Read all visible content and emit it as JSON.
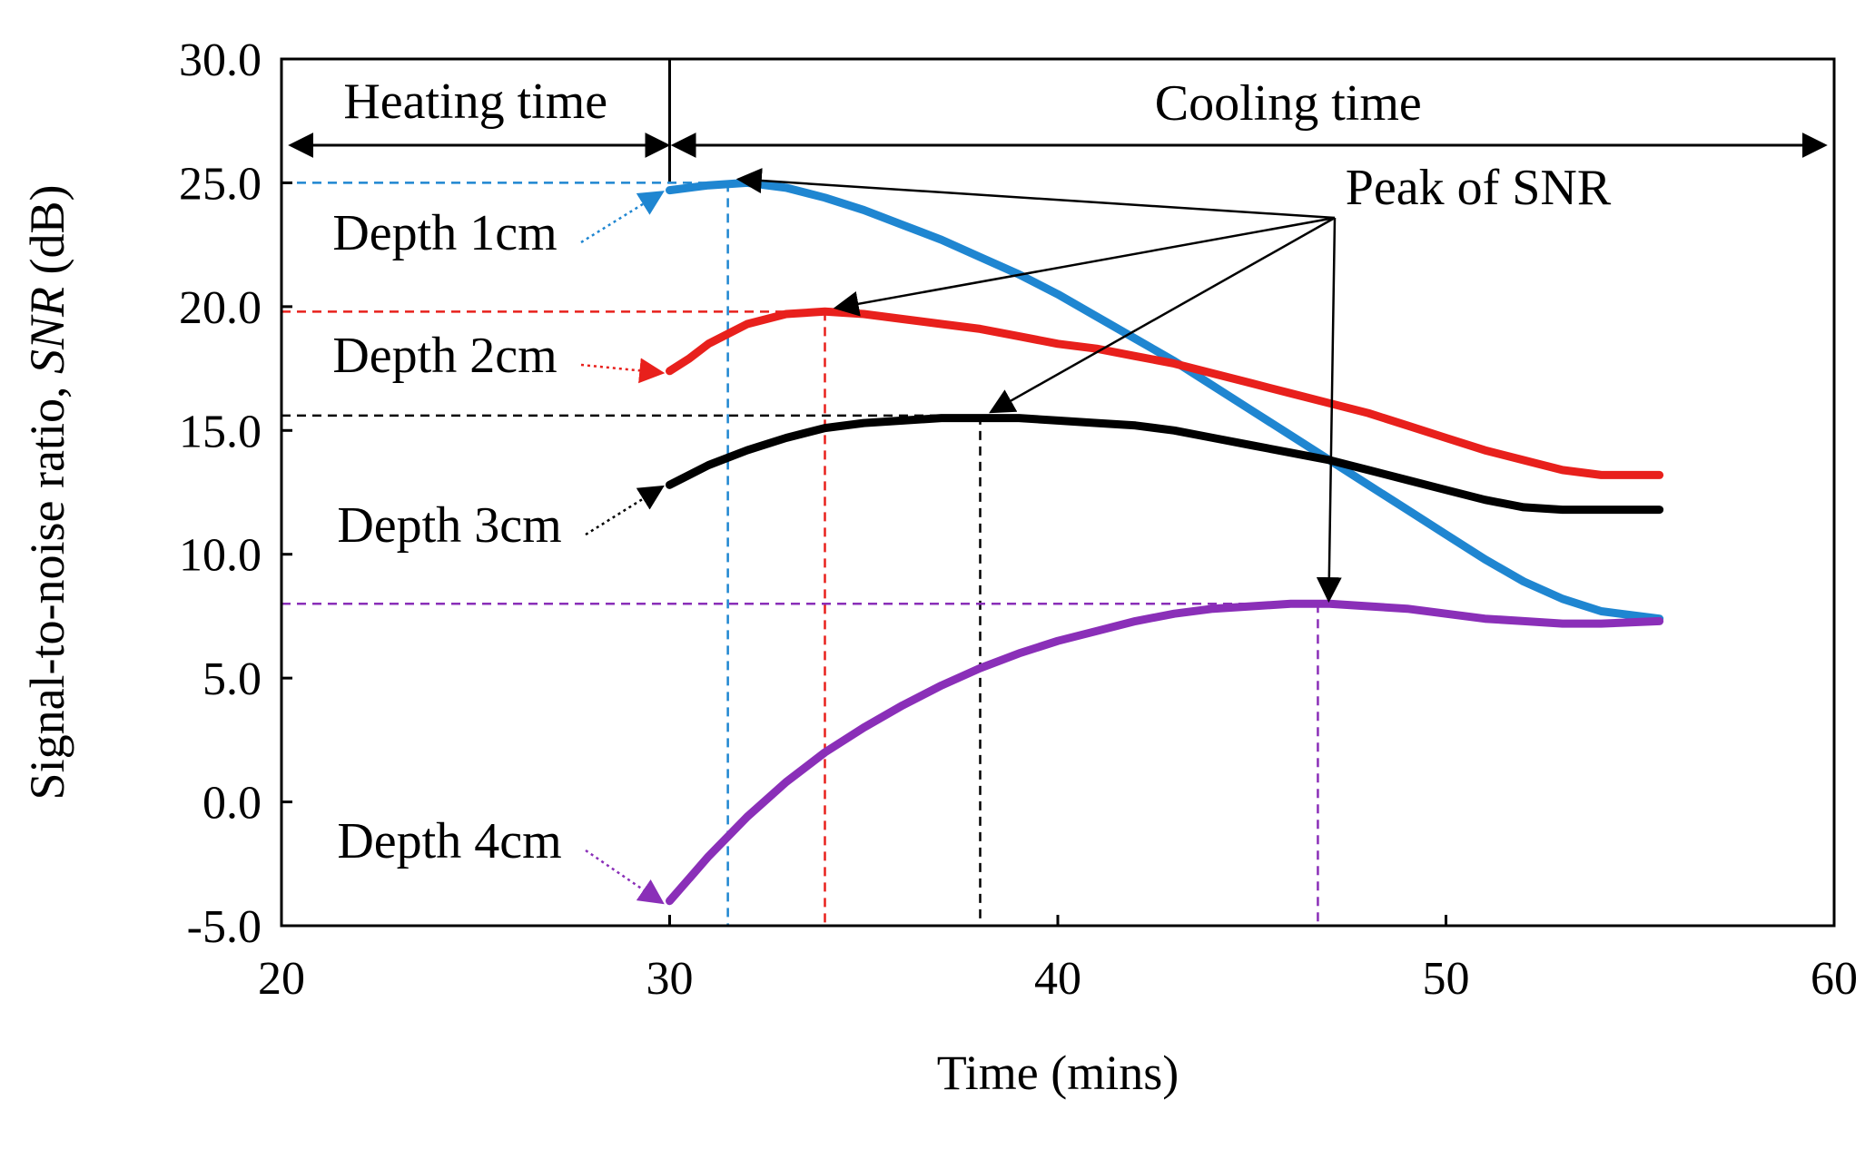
{
  "chart_data": {
    "type": "line",
    "xlabel": "Time  (mins)",
    "ylabel_prefix": "Signal-to-noise  ratio, ",
    "ylabel_italic": "SNR",
    "ylabel_suffix": " (dB)",
    "xlim": [
      20,
      60
    ],
    "ylim": [
      -5,
      30
    ],
    "xticks": [
      20,
      30,
      40,
      50,
      60
    ],
    "yticks": [
      -5,
      0,
      5,
      10,
      15,
      20,
      25,
      30
    ],
    "xtick_labels": [
      "20",
      "30",
      "40",
      "50",
      "60"
    ],
    "ytick_labels": [
      "-5.0",
      "0.0",
      "5.0",
      "10.0",
      "15.0",
      "20.0",
      "25.0",
      "30.0"
    ],
    "grid": false,
    "heating_label": "Heating  time",
    "cooling_label": "Cooling  time",
    "heating_range": [
      20,
      30
    ],
    "cooling_range": [
      30,
      60
    ],
    "peak_label": "Peak of SNR",
    "series": [
      {
        "name": "Depth 1cm",
        "color": "#1f86d1",
        "x": [
          30,
          31,
          32,
          33,
          34,
          35,
          36,
          37,
          38,
          39,
          40,
          41,
          42,
          43,
          44,
          45,
          46,
          47,
          48,
          49,
          50,
          51,
          52,
          53,
          54,
          55.5
        ],
        "y": [
          24.7,
          24.9,
          25.0,
          24.8,
          24.4,
          23.9,
          23.3,
          22.7,
          22.0,
          21.3,
          20.5,
          19.6,
          18.7,
          17.8,
          16.8,
          15.8,
          14.8,
          13.8,
          12.8,
          11.8,
          10.8,
          9.8,
          8.9,
          8.2,
          7.7,
          7.4
        ],
        "peak_x": 31.5,
        "peak_y": 25.0
      },
      {
        "name": "Depth 2cm",
        "color": "#e8201c",
        "x": [
          30,
          30.5,
          31,
          32,
          33,
          34,
          35,
          36,
          37,
          38,
          39,
          40,
          41,
          42,
          43,
          44,
          45,
          46,
          47,
          48,
          49,
          50,
          51,
          52,
          53,
          54,
          55.5
        ],
        "y": [
          17.4,
          17.9,
          18.5,
          19.3,
          19.7,
          19.8,
          19.7,
          19.5,
          19.3,
          19.1,
          18.8,
          18.5,
          18.3,
          18.0,
          17.7,
          17.3,
          16.9,
          16.5,
          16.1,
          15.7,
          15.2,
          14.7,
          14.2,
          13.8,
          13.4,
          13.2,
          13.2
        ],
        "peak_x": 34,
        "peak_y": 19.8
      },
      {
        "name": "Depth 3cm",
        "color": "#000000",
        "x": [
          30,
          31,
          32,
          33,
          34,
          35,
          36,
          37,
          38,
          39,
          40,
          41,
          42,
          43,
          44,
          45,
          46,
          47,
          48,
          49,
          50,
          51,
          52,
          53,
          54,
          55.5
        ],
        "y": [
          12.8,
          13.6,
          14.2,
          14.7,
          15.1,
          15.3,
          15.4,
          15.5,
          15.5,
          15.5,
          15.4,
          15.3,
          15.2,
          15.0,
          14.7,
          14.4,
          14.1,
          13.8,
          13.4,
          13.0,
          12.6,
          12.2,
          11.9,
          11.8,
          11.8,
          11.8
        ],
        "peak_x": 38,
        "peak_y": 15.6
      },
      {
        "name": "Depth 4cm",
        "color": "#8a2fb8",
        "x": [
          30,
          31,
          32,
          33,
          34,
          35,
          36,
          37,
          38,
          39,
          40,
          41,
          42,
          43,
          44,
          45,
          46,
          47,
          48,
          49,
          50,
          51,
          52,
          53,
          54,
          55.5
        ],
        "y": [
          -4.0,
          -2.2,
          -0.6,
          0.8,
          2.0,
          3.0,
          3.9,
          4.7,
          5.4,
          6.0,
          6.5,
          6.9,
          7.3,
          7.6,
          7.8,
          7.9,
          8.0,
          8.0,
          7.9,
          7.8,
          7.6,
          7.4,
          7.3,
          7.2,
          7.2,
          7.3
        ],
        "peak_x": 46.7,
        "peak_y": 8.0
      }
    ]
  }
}
